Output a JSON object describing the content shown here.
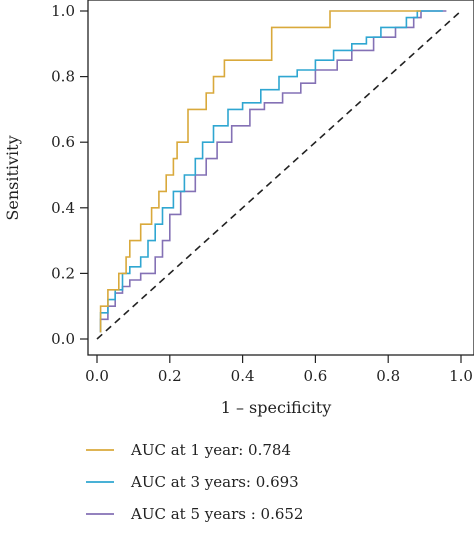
{
  "chart_data": {
    "type": "line",
    "title": "",
    "xlabel": "1 – specificity",
    "ylabel": "Sensitivity",
    "xlim": [
      0,
      1
    ],
    "ylim": [
      0,
      1
    ],
    "x_ticks": [
      "0.0",
      "0.2",
      "0.4",
      "0.6",
      "0.8",
      "1.0"
    ],
    "y_ticks": [
      "0.0",
      "0.2",
      "0.4",
      "0.6",
      "0.8",
      "1.0"
    ],
    "grid": false,
    "legend_position": "bottom",
    "reference_line": {
      "style": "dashed",
      "from": [
        0,
        0
      ],
      "to": [
        1,
        1
      ]
    },
    "series": [
      {
        "name": "AUC at 1 year: 0.784",
        "color": "#d9a93b",
        "points": [
          [
            0.01,
            0.02
          ],
          [
            0.01,
            0.1
          ],
          [
            0.03,
            0.1
          ],
          [
            0.03,
            0.15
          ],
          [
            0.06,
            0.15
          ],
          [
            0.06,
            0.2
          ],
          [
            0.08,
            0.2
          ],
          [
            0.08,
            0.25
          ],
          [
            0.09,
            0.25
          ],
          [
            0.09,
            0.3
          ],
          [
            0.12,
            0.3
          ],
          [
            0.12,
            0.35
          ],
          [
            0.15,
            0.35
          ],
          [
            0.15,
            0.4
          ],
          [
            0.17,
            0.4
          ],
          [
            0.17,
            0.45
          ],
          [
            0.19,
            0.45
          ],
          [
            0.19,
            0.5
          ],
          [
            0.21,
            0.5
          ],
          [
            0.21,
            0.55
          ],
          [
            0.22,
            0.55
          ],
          [
            0.22,
            0.6
          ],
          [
            0.25,
            0.6
          ],
          [
            0.25,
            0.7
          ],
          [
            0.3,
            0.7
          ],
          [
            0.3,
            0.75
          ],
          [
            0.32,
            0.75
          ],
          [
            0.32,
            0.8
          ],
          [
            0.35,
            0.8
          ],
          [
            0.35,
            0.85
          ],
          [
            0.48,
            0.85
          ],
          [
            0.48,
            0.95
          ],
          [
            0.64,
            0.95
          ],
          [
            0.64,
            1.0
          ],
          [
            0.89,
            1.0
          ]
        ]
      },
      {
        "name": "AUC at 3 years: 0.693",
        "color": "#2fa6d1",
        "points": [
          [
            0.01,
            0.02
          ],
          [
            0.01,
            0.08
          ],
          [
            0.03,
            0.08
          ],
          [
            0.03,
            0.12
          ],
          [
            0.05,
            0.12
          ],
          [
            0.05,
            0.15
          ],
          [
            0.07,
            0.15
          ],
          [
            0.07,
            0.2
          ],
          [
            0.09,
            0.2
          ],
          [
            0.09,
            0.22
          ],
          [
            0.12,
            0.22
          ],
          [
            0.12,
            0.25
          ],
          [
            0.14,
            0.25
          ],
          [
            0.14,
            0.3
          ],
          [
            0.16,
            0.3
          ],
          [
            0.16,
            0.35
          ],
          [
            0.18,
            0.35
          ],
          [
            0.18,
            0.4
          ],
          [
            0.21,
            0.4
          ],
          [
            0.21,
            0.45
          ],
          [
            0.24,
            0.45
          ],
          [
            0.24,
            0.5
          ],
          [
            0.27,
            0.5
          ],
          [
            0.27,
            0.55
          ],
          [
            0.29,
            0.55
          ],
          [
            0.29,
            0.6
          ],
          [
            0.32,
            0.6
          ],
          [
            0.32,
            0.65
          ],
          [
            0.36,
            0.65
          ],
          [
            0.36,
            0.7
          ],
          [
            0.4,
            0.7
          ],
          [
            0.4,
            0.72
          ],
          [
            0.45,
            0.72
          ],
          [
            0.45,
            0.76
          ],
          [
            0.5,
            0.76
          ],
          [
            0.5,
            0.8
          ],
          [
            0.55,
            0.8
          ],
          [
            0.55,
            0.82
          ],
          [
            0.6,
            0.82
          ],
          [
            0.6,
            0.85
          ],
          [
            0.65,
            0.85
          ],
          [
            0.65,
            0.88
          ],
          [
            0.7,
            0.88
          ],
          [
            0.7,
            0.9
          ],
          [
            0.74,
            0.9
          ],
          [
            0.74,
            0.92
          ],
          [
            0.78,
            0.92
          ],
          [
            0.78,
            0.95
          ],
          [
            0.85,
            0.95
          ],
          [
            0.85,
            0.98
          ],
          [
            0.88,
            0.98
          ],
          [
            0.88,
            1.0
          ],
          [
            0.95,
            1.0
          ]
        ]
      },
      {
        "name": "AUC at 5 years : 0.652",
        "color": "#8471b5",
        "points": [
          [
            0.01,
            0.02
          ],
          [
            0.01,
            0.06
          ],
          [
            0.03,
            0.06
          ],
          [
            0.03,
            0.1
          ],
          [
            0.05,
            0.1
          ],
          [
            0.05,
            0.14
          ],
          [
            0.07,
            0.14
          ],
          [
            0.07,
            0.16
          ],
          [
            0.09,
            0.16
          ],
          [
            0.09,
            0.18
          ],
          [
            0.12,
            0.18
          ],
          [
            0.12,
            0.2
          ],
          [
            0.16,
            0.2
          ],
          [
            0.16,
            0.25
          ],
          [
            0.18,
            0.25
          ],
          [
            0.18,
            0.3
          ],
          [
            0.2,
            0.3
          ],
          [
            0.2,
            0.38
          ],
          [
            0.23,
            0.38
          ],
          [
            0.23,
            0.45
          ],
          [
            0.27,
            0.45
          ],
          [
            0.27,
            0.5
          ],
          [
            0.3,
            0.5
          ],
          [
            0.3,
            0.55
          ],
          [
            0.33,
            0.55
          ],
          [
            0.33,
            0.6
          ],
          [
            0.37,
            0.6
          ],
          [
            0.37,
            0.65
          ],
          [
            0.42,
            0.65
          ],
          [
            0.42,
            0.7
          ],
          [
            0.46,
            0.7
          ],
          [
            0.46,
            0.72
          ],
          [
            0.51,
            0.72
          ],
          [
            0.51,
            0.75
          ],
          [
            0.56,
            0.75
          ],
          [
            0.56,
            0.78
          ],
          [
            0.6,
            0.78
          ],
          [
            0.6,
            0.82
          ],
          [
            0.66,
            0.82
          ],
          [
            0.66,
            0.85
          ],
          [
            0.7,
            0.85
          ],
          [
            0.7,
            0.88
          ],
          [
            0.76,
            0.88
          ],
          [
            0.76,
            0.92
          ],
          [
            0.82,
            0.92
          ],
          [
            0.82,
            0.95
          ],
          [
            0.87,
            0.95
          ],
          [
            0.87,
            0.98
          ],
          [
            0.89,
            0.98
          ],
          [
            0.89,
            1.0
          ],
          [
            0.96,
            1.0
          ]
        ]
      }
    ]
  }
}
